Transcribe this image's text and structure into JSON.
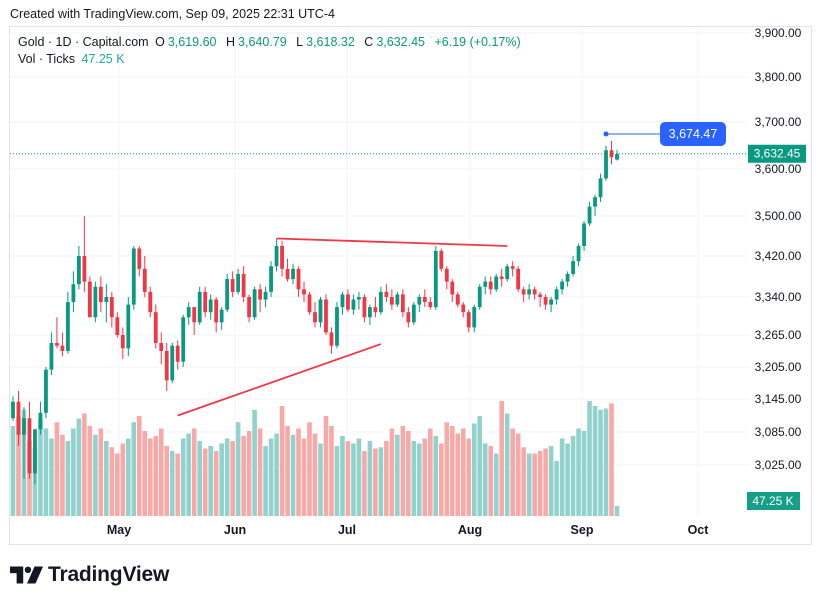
{
  "header": {
    "created": "Created with TradingView.com, Sep 09, 2025 22:31 UTC-4"
  },
  "legend": {
    "symbol": "Gold · 1D · Capital.com",
    "o_label": "O",
    "o_value": "3,619.60",
    "h_label": "H",
    "h_value": "3,640.79",
    "l_label": "L",
    "l_value": "3,618.32",
    "c_label": "C",
    "c_value": "3,632.45",
    "change": "+6.19 (+0.17%)",
    "vol_label": "Vol · Ticks",
    "vol_value": "47.25 K"
  },
  "brand": {
    "name": "TradingView"
  },
  "colors": {
    "up": "#089981",
    "down": "#f23645",
    "vol_up": "#92d2cc",
    "vol_down": "#f7a9a7",
    "price_line": "#089981",
    "drawing": "#f23645",
    "marker": "#2962ff",
    "grid": "#f0f3fa"
  },
  "chart_data": {
    "type": "candlestick",
    "symbol": "Gold",
    "interval": "1D",
    "y_ticks": [
      3900,
      3800,
      3700,
      3600,
      3500,
      3420,
      3340,
      3265,
      3205,
      3145,
      3085,
      3025
    ],
    "y_tick_labels": [
      "3,900.00",
      "3,800.00",
      "3,700.00",
      "3,600.00",
      "3,500.00",
      "3,420.00",
      "3,340.00",
      "3,265.00",
      "3,205.00",
      "3,145.00",
      "3,085.00",
      "3,025.00"
    ],
    "x_labels": [
      "May",
      "Jun",
      "Jul",
      "Aug",
      "Sep",
      "Oct"
    ],
    "last_price": "3,632.45",
    "marker_price": "3,674.47",
    "volume_last": "47.25 K",
    "candles": [
      [
        3110,
        3150,
        3105,
        3140
      ],
      [
        3140,
        3160,
        3060,
        3080
      ],
      [
        3080,
        3130,
        3000,
        3110
      ],
      [
        3110,
        3140,
        3000,
        3010
      ],
      [
        3010,
        3090,
        2990,
        3090
      ],
      [
        3090,
        3140,
        3080,
        3120
      ],
      [
        3120,
        3205,
        3110,
        3200
      ],
      [
        3200,
        3270,
        3190,
        3250
      ],
      [
        3250,
        3300,
        3240,
        3245
      ],
      [
        3245,
        3270,
        3225,
        3235
      ],
      [
        3235,
        3350,
        3230,
        3330
      ],
      [
        3330,
        3390,
        3310,
        3365
      ],
      [
        3365,
        3440,
        3355,
        3420
      ],
      [
        3420,
        3500,
        3350,
        3370
      ],
      [
        3370,
        3380,
        3300,
        3300
      ],
      [
        3300,
        3370,
        3290,
        3360
      ],
      [
        3360,
        3380,
        3310,
        3330
      ],
      [
        3330,
        3365,
        3290,
        3340
      ],
      [
        3340,
        3350,
        3280,
        3300
      ],
      [
        3300,
        3310,
        3260,
        3265
      ],
      [
        3265,
        3280,
        3220,
        3240
      ],
      [
        3240,
        3340,
        3225,
        3325
      ],
      [
        3325,
        3440,
        3315,
        3435
      ],
      [
        3435,
        3440,
        3380,
        3395
      ],
      [
        3395,
        3420,
        3340,
        3350
      ],
      [
        3350,
        3360,
        3300,
        3310
      ],
      [
        3310,
        3325,
        3240,
        3250
      ],
      [
        3250,
        3270,
        3210,
        3235
      ],
      [
        3235,
        3250,
        3160,
        3180
      ],
      [
        3180,
        3250,
        3175,
        3245
      ],
      [
        3245,
        3255,
        3200,
        3215
      ],
      [
        3215,
        3305,
        3205,
        3300
      ],
      [
        3300,
        3330,
        3285,
        3320
      ],
      [
        3320,
        3320,
        3265,
        3290
      ],
      [
        3290,
        3360,
        3285,
        3350
      ],
      [
        3350,
        3360,
        3300,
        3310
      ],
      [
        3310,
        3345,
        3295,
        3335
      ],
      [
        3335,
        3340,
        3270,
        3290
      ],
      [
        3290,
        3320,
        3275,
        3315
      ],
      [
        3315,
        3385,
        3310,
        3375
      ],
      [
        3375,
        3390,
        3340,
        3350
      ],
      [
        3350,
        3395,
        3345,
        3385
      ],
      [
        3385,
        3400,
        3330,
        3340
      ],
      [
        3340,
        3345,
        3290,
        3300
      ],
      [
        3300,
        3360,
        3295,
        3355
      ],
      [
        3355,
        3365,
        3310,
        3335
      ],
      [
        3335,
        3360,
        3320,
        3350
      ],
      [
        3350,
        3410,
        3340,
        3400
      ],
      [
        3400,
        3455,
        3390,
        3440
      ],
      [
        3440,
        3450,
        3380,
        3395
      ],
      [
        3395,
        3415,
        3370,
        3375
      ],
      [
        3375,
        3405,
        3365,
        3395
      ],
      [
        3395,
        3400,
        3340,
        3355
      ],
      [
        3355,
        3370,
        3330,
        3345
      ],
      [
        3345,
        3350,
        3305,
        3310
      ],
      [
        3310,
        3330,
        3280,
        3290
      ],
      [
        3290,
        3340,
        3280,
        3335
      ],
      [
        3335,
        3345,
        3265,
        3270
      ],
      [
        3270,
        3280,
        3230,
        3245
      ],
      [
        3245,
        3330,
        3240,
        3320
      ],
      [
        3320,
        3350,
        3305,
        3345
      ],
      [
        3345,
        3355,
        3310,
        3315
      ],
      [
        3315,
        3345,
        3305,
        3335
      ],
      [
        3335,
        3350,
        3315,
        3340
      ],
      [
        3340,
        3345,
        3290,
        3300
      ],
      [
        3300,
        3325,
        3285,
        3320
      ],
      [
        3320,
        3340,
        3300,
        3310
      ],
      [
        3310,
        3360,
        3305,
        3350
      ],
      [
        3350,
        3365,
        3330,
        3340
      ],
      [
        3340,
        3355,
        3315,
        3325
      ],
      [
        3325,
        3350,
        3320,
        3345
      ],
      [
        3345,
        3355,
        3300,
        3310
      ],
      [
        3310,
        3320,
        3280,
        3290
      ],
      [
        3290,
        3330,
        3285,
        3325
      ],
      [
        3325,
        3345,
        3310,
        3340
      ],
      [
        3340,
        3355,
        3320,
        3330
      ],
      [
        3330,
        3340,
        3315,
        3320
      ],
      [
        3320,
        3440,
        3315,
        3430
      ],
      [
        3430,
        3435,
        3390,
        3395
      ],
      [
        3395,
        3400,
        3355,
        3370
      ],
      [
        3370,
        3375,
        3330,
        3345
      ],
      [
        3345,
        3350,
        3320,
        3325
      ],
      [
        3325,
        3330,
        3300,
        3310
      ],
      [
        3310,
        3315,
        3270,
        3280
      ],
      [
        3280,
        3325,
        3270,
        3320
      ],
      [
        3320,
        3365,
        3315,
        3360
      ],
      [
        3360,
        3380,
        3345,
        3370
      ],
      [
        3370,
        3380,
        3345,
        3355
      ],
      [
        3355,
        3385,
        3350,
        3380
      ],
      [
        3380,
        3395,
        3360,
        3375
      ],
      [
        3375,
        3405,
        3370,
        3400
      ],
      [
        3400,
        3410,
        3380,
        3395
      ],
      [
        3395,
        3400,
        3350,
        3355
      ],
      [
        3355,
        3360,
        3330,
        3345
      ],
      [
        3345,
        3365,
        3335,
        3355
      ],
      [
        3355,
        3360,
        3335,
        3345
      ],
      [
        3345,
        3350,
        3320,
        3340
      ],
      [
        3340,
        3345,
        3315,
        3325
      ],
      [
        3325,
        3340,
        3310,
        3335
      ],
      [
        3335,
        3360,
        3325,
        3355
      ],
      [
        3355,
        3375,
        3345,
        3370
      ],
      [
        3370,
        3390,
        3360,
        3385
      ],
      [
        3385,
        3420,
        3380,
        3410
      ],
      [
        3410,
        3445,
        3400,
        3440
      ],
      [
        3440,
        3490,
        3430,
        3485
      ],
      [
        3485,
        3530,
        3480,
        3520
      ],
      [
        3520,
        3545,
        3500,
        3540
      ],
      [
        3540,
        3590,
        3530,
        3580
      ],
      [
        3580,
        3650,
        3575,
        3640
      ],
      [
        3640,
        3660,
        3610,
        3625
      ],
      [
        3620,
        3641,
        3618,
        3632
      ]
    ],
    "volume_mode": "relative",
    "volumes": [
      0.72,
      0.8,
      0.85,
      0.6,
      0.55,
      0.78,
      0.7,
      0.62,
      0.75,
      0.65,
      0.6,
      0.7,
      0.78,
      0.82,
      0.72,
      0.65,
      0.7,
      0.6,
      0.55,
      0.5,
      0.58,
      0.62,
      0.75,
      0.8,
      0.68,
      0.62,
      0.64,
      0.7,
      0.56,
      0.52,
      0.5,
      0.62,
      0.66,
      0.7,
      0.6,
      0.54,
      0.56,
      0.52,
      0.58,
      0.62,
      0.6,
      0.75,
      0.64,
      0.68,
      0.85,
      0.7,
      0.56,
      0.62,
      0.66,
      0.88,
      0.72,
      0.65,
      0.7,
      0.62,
      0.75,
      0.66,
      0.58,
      0.8,
      0.72,
      0.56,
      0.64,
      0.6,
      0.58,
      0.62,
      0.52,
      0.6,
      0.54,
      0.55,
      0.6,
      0.7,
      0.65,
      0.72,
      0.68,
      0.6,
      0.58,
      0.62,
      0.7,
      0.64,
      0.58,
      0.75,
      0.72,
      0.66,
      0.7,
      0.62,
      0.74,
      0.8,
      0.58,
      0.56,
      0.5,
      0.92,
      0.82,
      0.7,
      0.66,
      0.55,
      0.5,
      0.5,
      0.52,
      0.54,
      0.56,
      0.44,
      0.62,
      0.58,
      0.64,
      0.7,
      0.68,
      0.92,
      0.88,
      0.85,
      0.86,
      0.9,
      0.08
    ]
  }
}
